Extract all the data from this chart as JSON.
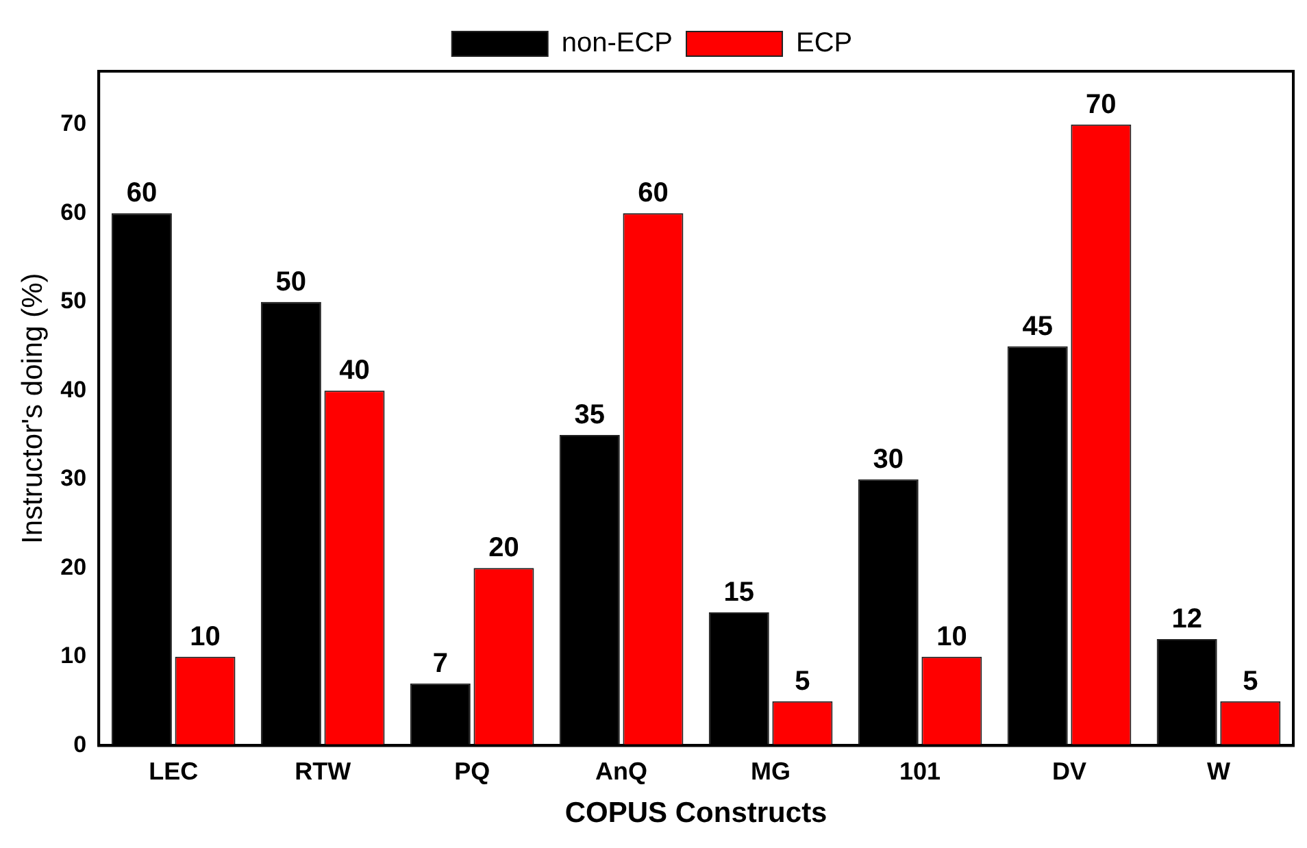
{
  "chart_data": {
    "type": "bar",
    "xlabel": "COPUS Constructs",
    "ylabel": "Instructor's doing (%)",
    "categories": [
      "LEC",
      "RTW",
      "PQ",
      "AnQ",
      "MG",
      "101",
      "DV",
      "W"
    ],
    "series": [
      {
        "name": "non-ECP",
        "color": "#000000",
        "values": [
          60,
          50,
          7,
          35,
          15,
          30,
          45,
          12
        ]
      },
      {
        "name": "ECP",
        "color": "#ff0000",
        "values": [
          10,
          40,
          20,
          60,
          5,
          10,
          70,
          5
        ]
      }
    ],
    "ylim": [
      0,
      76
    ],
    "yticks": [
      0,
      10,
      20,
      30,
      40,
      50,
      60,
      70
    ],
    "grid": false,
    "legend": "top",
    "data_labels": true
  }
}
